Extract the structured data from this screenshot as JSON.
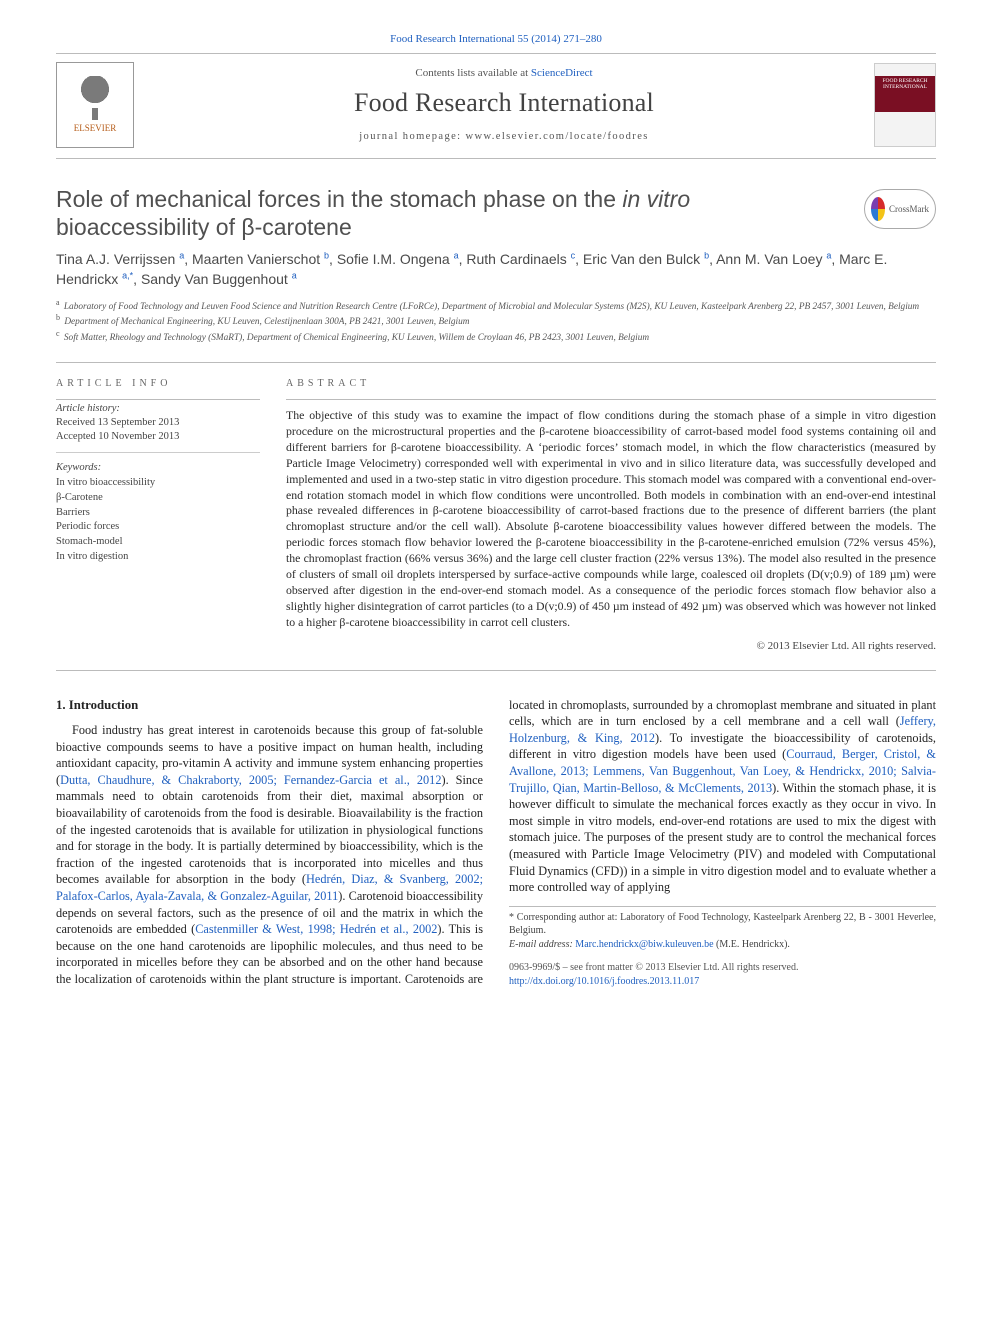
{
  "topLink": {
    "text": "Food Research International 55 (2014) 271–280",
    "color": "#2060c0"
  },
  "header": {
    "contentsLine_prefix": "Contents lists available at ",
    "contentsLine_link": "ScienceDirect",
    "journalName": "Food Research International",
    "homepage_prefix": "journal homepage: ",
    "homepage_url": "www.elsevier.com/locate/foodres",
    "elsevier_label": "ELSEVIER",
    "cover_title": "FOOD RESEARCH INTERNATIONAL"
  },
  "crossmark": {
    "label": "CrossMark"
  },
  "title": {
    "line1": "Role of mechanical forces in the stomach phase on the ",
    "ital1": "in vitro",
    "line2": " bioaccessibility of β-carotene"
  },
  "authors": [
    {
      "name": "Tina A.J. Verrijssen",
      "aff": "a"
    },
    {
      "name": "Maarten Vanierschot",
      "aff": "b"
    },
    {
      "name": "Sofie I.M. Ongena",
      "aff": "a"
    },
    {
      "name": "Ruth Cardinaels",
      "aff": "c"
    },
    {
      "name": "Eric Van den Bulck",
      "aff": "b"
    },
    {
      "name": "Ann M. Van Loey",
      "aff": "a"
    },
    {
      "name": "Marc E. Hendrickx",
      "aff": "a,*"
    },
    {
      "name": "Sandy Van Buggenhout",
      "aff": "a"
    }
  ],
  "affiliations": {
    "a": "Laboratory of Food Technology and Leuven Food Science and Nutrition Research Centre (LFoRCe), Department of Microbial and Molecular Systems (M2S), KU Leuven, Kasteelpark Arenberg 22, PB 2457, 3001 Leuven, Belgium",
    "b": "Department of Mechanical Engineering, KU Leuven, Celestijnenlaan 300A, PB 2421, 3001 Leuven, Belgium",
    "c": "Soft Matter, Rheology and Technology (SMaRT), Department of Chemical Engineering, KU Leuven, Willem de Croylaan 46, PB 2423, 3001 Leuven, Belgium"
  },
  "articleInfo": {
    "head": "article info",
    "historyHead": "Article history:",
    "received": "Received 13 September 2013",
    "accepted": "Accepted 10 November 2013",
    "keywordsHead": "Keywords:",
    "keywords": [
      "In vitro bioaccessibility",
      "β-Carotene",
      "Barriers",
      "Periodic forces",
      "Stomach-model",
      "In vitro digestion"
    ]
  },
  "abstract": {
    "head": "abstract",
    "text": "The objective of this study was to examine the impact of flow conditions during the stomach phase of a simple in vitro digestion procedure on the microstructural properties and the β-carotene bioaccessibility of carrot-based model food systems containing oil and different barriers for β-carotene bioaccessibility. A ‘periodic forces’ stomach model, in which the flow characteristics (measured by Particle Image Velocimetry) corresponded well with experimental in vivo and in silico literature data, was successfully developed and implemented and used in a two-step static in vitro digestion procedure. This stomach model was compared with a conventional end-over-end rotation stomach model in which flow conditions were uncontrolled. Both models in combination with an end-over-end intestinal phase revealed differences in β-carotene bioaccessibility of carrot-based fractions due to the presence of different barriers (the plant chromoplast structure and/or the cell wall). Absolute β-carotene bioaccessibility values however differed between the models. The periodic forces stomach flow behavior lowered the β-carotene bioaccessibility in the β-carotene-enriched emulsion (72% versus 45%), the chromoplast fraction (66% versus 36%) and the large cell cluster fraction (22% versus 13%). The model also resulted in the presence of clusters of small oil droplets interspersed by surface-active compounds while large, coalesced oil droplets (D(v;0.9) of 189 µm) were observed after digestion in the end-over-end stomach model. As a consequence of the periodic forces stomach flow behavior also a slightly higher disintegration of carrot particles (to a D(v;0.9) of 450 µm instead of 492 µm) was observed which was however not linked to a higher β-carotene bioaccessibility in carrot cell clusters.",
    "copyright": "© 2013 Elsevier Ltd. All rights reserved."
  },
  "body": {
    "heading": "1. Introduction",
    "p1_a": "Food industry has great interest in carotenoids because this group of fat-soluble bioactive compounds seems to have a positive impact on human health, including antioxidant capacity, pro-vitamin A activity and immune system enhancing properties (",
    "p1_ref1": "Dutta, Chaudhure, & Chakraborty, 2005; Fernandez-Garcia et al., 2012",
    "p1_b": "). Since mammals need to obtain carotenoids from their diet, maximal absorption or bioavailability of carotenoids from the food is desirable. Bioavailability is the fraction of the ingested carotenoids that is available for utilization in physiological functions and for storage in the body. It is partially determined by bioaccessibility, which is the fraction of the ingested carotenoids that is incorporated into micelles and thus becomes available for absorption in the body (",
    "p1_ref2": "Hedrén, Diaz, & Svanberg, 2002; Palafox-Carlos, Ayala-Zavala, & Gonzalez-Aguilar, 2011",
    "p1_c": "). Carotenoid bioaccessibility depends on several factors, such as the presence of oil ",
    "p2_a": "and the matrix in which the carotenoids are embedded (",
    "p2_ref1": "Castenmiller & West, 1998; Hedrén et al., 2002",
    "p2_b": "). This is because on the one hand carotenoids are lipophilic molecules, and thus need to be incorporated in micelles before they can be absorbed and on the other hand because the localization of carotenoids within the plant structure is important. Carotenoids are located in chromoplasts, surrounded by a chromoplast membrane and situated in plant cells, which are in turn enclosed by a cell membrane and a cell wall (",
    "p2_ref2": "Jeffery, Holzenburg, & King, 2012",
    "p2_c": "). To investigate the bioaccessibility of carotenoids, different in vitro digestion models have been used (",
    "p2_ref3": "Courraud, Berger, Cristol, & Avallone, 2013; Lemmens, Van Buggenhout, Van Loey, & Hendrickx, 2010; Salvia-Trujillo, Qian, Martin-Belloso, & McClements, 2013",
    "p2_d": "). Within the stomach phase, it is however difficult to simulate the mechanical forces exactly as they occur in vivo. In most simple in vitro models, end-over-end rotations are used to mix the digest with stomach juice. The purposes of the present study are to control the mechanical forces (measured with Particle Image Velocimetry (PIV) and modeled with Computational Fluid Dynamics (CFD)) in a simple in vitro digestion model and to evaluate whether a more controlled way of applying"
  },
  "footnotes": {
    "corr": "* Corresponding author at: Laboratory of Food Technology, Kasteelpark Arenberg 22, B - 3001 Heverlee, Belgium.",
    "emailLabel": "E-mail address:",
    "email": "Marc.hendrickx@biw.kuleuven.be",
    "emailAuthor": "(M.E. Hendrickx)."
  },
  "bottom": {
    "issn": "0963-9969/$ – see front matter © 2013 Elsevier Ltd. All rights reserved.",
    "doi": "http://dx.doi.org/10.1016/j.foodres.2013.11.017"
  },
  "colors": {
    "link": "#2060c0",
    "text": "#222222",
    "muted": "#555555",
    "rule": "#bbbbbb",
    "coverBand": "#7a0f23",
    "elsevierOrange": "#b65d1a"
  },
  "layout": {
    "pageWidth": 992,
    "pageHeight": 1323,
    "bodyColumns": 2,
    "columnGap": 26,
    "baseFontSize": 13,
    "abstractFontSize": 11.8,
    "titleFontSize": 23,
    "journalNameFontSize": 26
  }
}
